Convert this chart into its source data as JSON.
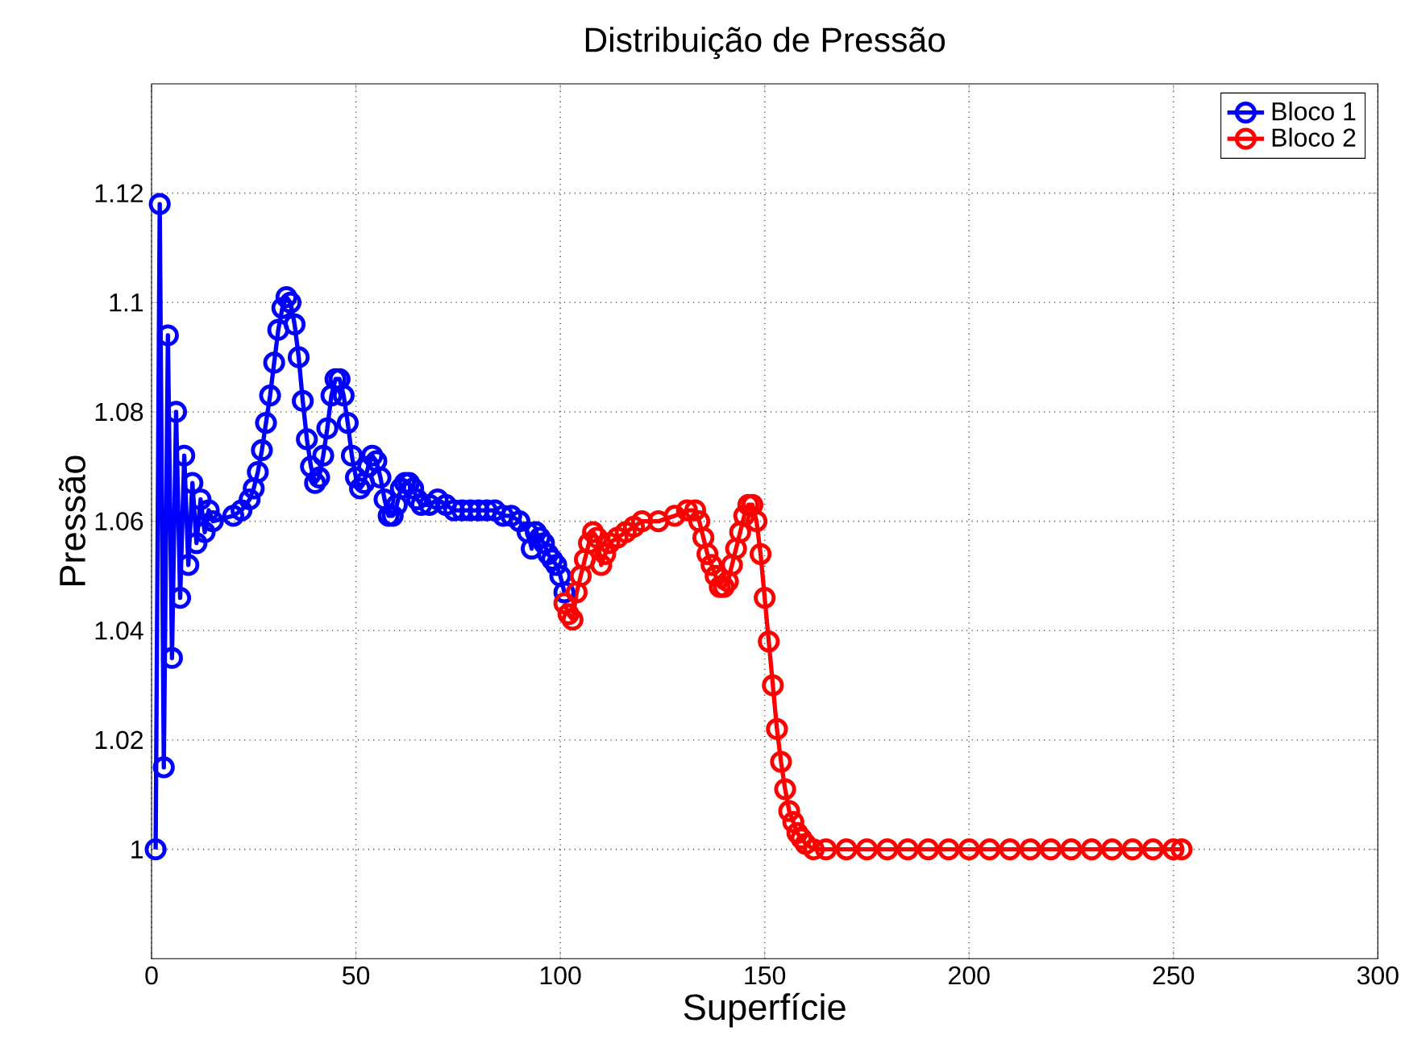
{
  "chart_data": {
    "type": "line",
    "title": "Distribuição de Pressão",
    "xlabel": "Superfície",
    "ylabel": "Pressão",
    "xlim": [
      0,
      300
    ],
    "ylim": [
      0.98,
      1.14
    ],
    "xticks": [
      0,
      50,
      100,
      150,
      200,
      250,
      300
    ],
    "yticks": [
      1,
      1.02,
      1.04,
      1.06,
      1.08,
      1.1,
      1.12
    ],
    "grid": true,
    "legend": "top right",
    "marker": "circle",
    "line_style": "solid",
    "series": [
      {
        "name": "Bloco 1",
        "color": "#0000ff",
        "x": [
          1,
          2,
          3,
          4,
          5,
          6,
          7,
          8,
          9,
          10,
          11,
          12,
          13,
          14,
          15,
          20,
          22,
          24,
          25,
          26,
          27,
          28,
          29,
          30,
          31,
          32,
          33,
          34,
          35,
          36,
          37,
          38,
          39,
          40,
          41,
          42,
          43,
          44,
          45,
          46,
          47,
          48,
          49,
          50,
          51,
          52,
          53,
          54,
          55,
          56,
          57,
          58,
          59,
          60,
          61,
          62,
          63,
          64,
          65,
          66,
          68,
          70,
          72,
          74,
          76,
          78,
          80,
          82,
          84,
          86,
          88,
          90,
          92,
          93,
          94,
          95,
          96,
          97,
          98,
          99,
          100,
          101
        ],
        "values": [
          1.0,
          1.118,
          1.015,
          1.094,
          1.035,
          1.08,
          1.046,
          1.072,
          1.052,
          1.067,
          1.056,
          1.064,
          1.058,
          1.062,
          1.06,
          1.061,
          1.062,
          1.064,
          1.066,
          1.069,
          1.073,
          1.078,
          1.083,
          1.089,
          1.095,
          1.099,
          1.101,
          1.1,
          1.096,
          1.09,
          1.082,
          1.075,
          1.07,
          1.067,
          1.068,
          1.072,
          1.077,
          1.083,
          1.086,
          1.086,
          1.083,
          1.078,
          1.072,
          1.068,
          1.066,
          1.067,
          1.07,
          1.072,
          1.071,
          1.068,
          1.064,
          1.061,
          1.061,
          1.063,
          1.066,
          1.067,
          1.067,
          1.066,
          1.064,
          1.063,
          1.063,
          1.064,
          1.063,
          1.062,
          1.062,
          1.062,
          1.062,
          1.062,
          1.062,
          1.061,
          1.061,
          1.06,
          1.058,
          1.055,
          1.058,
          1.057,
          1.056,
          1.054,
          1.053,
          1.052,
          1.05,
          1.047
        ]
      },
      {
        "name": "Bloco 2",
        "color": "#ff0000",
        "x": [
          101,
          102,
          103,
          104,
          105,
          106,
          107,
          108,
          109,
          110,
          111,
          112,
          114,
          116,
          118,
          120,
          124,
          128,
          131,
          133,
          134,
          135,
          136,
          137,
          138,
          139,
          140,
          141,
          142,
          143,
          144,
          145,
          146,
          147,
          148,
          149,
          150,
          151,
          152,
          153,
          154,
          155,
          156,
          157,
          158,
          159,
          160,
          162,
          165,
          170,
          175,
          180,
          185,
          190,
          195,
          200,
          205,
          210,
          215,
          220,
          225,
          230,
          235,
          240,
          245,
          250,
          252
        ],
        "values": [
          1.045,
          1.043,
          1.042,
          1.047,
          1.05,
          1.053,
          1.056,
          1.058,
          1.057,
          1.052,
          1.054,
          1.056,
          1.057,
          1.058,
          1.059,
          1.06,
          1.06,
          1.061,
          1.062,
          1.062,
          1.06,
          1.057,
          1.054,
          1.052,
          1.05,
          1.048,
          1.048,
          1.049,
          1.052,
          1.055,
          1.058,
          1.061,
          1.063,
          1.063,
          1.06,
          1.054,
          1.046,
          1.038,
          1.03,
          1.022,
          1.016,
          1.011,
          1.007,
          1.005,
          1.003,
          1.002,
          1.001,
          1.0,
          1.0,
          1.0,
          1.0,
          1.0,
          1.0,
          1.0,
          1.0,
          1.0,
          1.0,
          1.0,
          1.0,
          1.0,
          1.0,
          1.0,
          1.0,
          1.0,
          1.0,
          1.0,
          1.0
        ]
      }
    ]
  }
}
